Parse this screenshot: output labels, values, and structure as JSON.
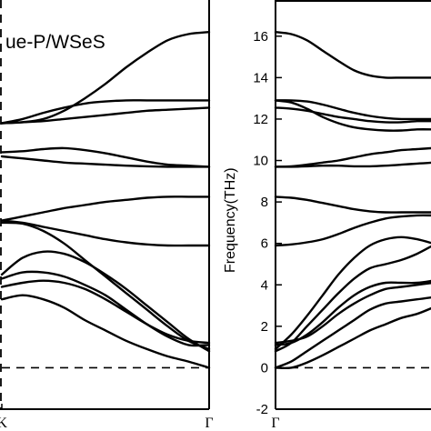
{
  "chart_data": [
    {
      "type": "line",
      "panel": "left",
      "title": "ue-P/WSeS",
      "xlabel": "",
      "ylabel": "",
      "x_ticks": [
        "K",
        "Γ"
      ],
      "x": [
        0,
        0.1,
        0.2,
        0.3,
        0.4,
        0.5,
        0.6,
        0.7,
        0.8,
        0.9,
        1
      ],
      "ylim": [
        -2,
        17
      ],
      "grid": false,
      "zero_line": "dashed",
      "series": [
        {
          "values": [
            11.8,
            11.85,
            12.0,
            12.4,
            13.0,
            13.7,
            14.5,
            15.2,
            15.8,
            16.1,
            16.2
          ]
        },
        {
          "values": [
            11.8,
            12.0,
            12.3,
            12.55,
            12.75,
            12.85,
            12.9,
            12.9,
            12.9,
            12.9,
            12.9
          ]
        },
        {
          "values": [
            11.8,
            11.85,
            11.9,
            12.0,
            12.1,
            12.2,
            12.3,
            12.4,
            12.45,
            12.5,
            12.55
          ]
        },
        {
          "values": [
            10.4,
            10.45,
            10.55,
            10.6,
            10.5,
            10.35,
            10.15,
            9.95,
            9.8,
            9.75,
            9.7
          ]
        },
        {
          "values": [
            10.2,
            10.1,
            10.0,
            9.9,
            9.85,
            9.8,
            9.75,
            9.72,
            9.7,
            9.7,
            9.7
          ]
        },
        {
          "values": [
            7.1,
            7.3,
            7.5,
            7.7,
            7.85,
            8.0,
            8.1,
            8.2,
            8.25,
            8.25,
            8.25
          ]
        },
        {
          "values": [
            7.1,
            7.0,
            6.8,
            6.6,
            6.4,
            6.2,
            6.05,
            5.95,
            5.9,
            5.9,
            5.9
          ]
        },
        {
          "values": [
            7.0,
            6.95,
            6.6,
            6.0,
            5.2,
            4.4,
            3.6,
            2.8,
            2.0,
            1.3,
            0.9
          ]
        },
        {
          "values": [
            4.5,
            5.3,
            5.6,
            5.5,
            5.1,
            4.5,
            3.8,
            3.0,
            2.2,
            1.4,
            0.8
          ]
        },
        {
          "values": [
            4.3,
            4.6,
            4.6,
            4.4,
            4.0,
            3.5,
            2.8,
            2.1,
            1.5,
            1.1,
            1.1
          ]
        },
        {
          "values": [
            3.9,
            4.1,
            4.2,
            4.1,
            3.8,
            3.3,
            2.7,
            2.1,
            1.6,
            1.3,
            1.2
          ]
        },
        {
          "values": [
            3.3,
            3.5,
            3.3,
            2.9,
            2.3,
            1.8,
            1.3,
            0.9,
            0.55,
            0.3,
            0.0
          ]
        }
      ]
    },
    {
      "type": "line",
      "panel": "right",
      "title": "",
      "xlabel": "",
      "ylabel": "Frequency(THz)",
      "x_ticks": [
        "Γ"
      ],
      "y_ticks": [
        "-2",
        "0",
        "2",
        "4",
        "6",
        "8",
        "10",
        "12",
        "14",
        "16"
      ],
      "x": [
        0,
        0.1,
        0.2,
        0.3,
        0.4,
        0.5,
        0.6,
        0.7,
        0.8,
        0.9,
        1
      ],
      "ylim": [
        -2,
        17
      ],
      "grid": false,
      "zero_line": "dashed",
      "series": [
        {
          "values": [
            16.2,
            16.1,
            15.8,
            15.3,
            14.8,
            14.35,
            14.1,
            14.0,
            14.0,
            14.0,
            14.0
          ]
        },
        {
          "values": [
            12.9,
            12.9,
            12.85,
            12.7,
            12.5,
            12.3,
            12.15,
            12.05,
            12.0,
            12.0,
            12.0
          ]
        },
        {
          "values": [
            12.9,
            12.8,
            12.5,
            12.1,
            11.8,
            11.6,
            11.5,
            11.45,
            11.45,
            11.5,
            11.5
          ]
        },
        {
          "values": [
            12.55,
            12.5,
            12.4,
            12.25,
            12.1,
            12.0,
            11.9,
            11.85,
            11.85,
            11.9,
            11.9
          ]
        },
        {
          "values": [
            9.7,
            9.72,
            9.8,
            9.9,
            10.0,
            10.15,
            10.3,
            10.4,
            10.5,
            10.55,
            10.6
          ]
        },
        {
          "values": [
            9.7,
            9.7,
            9.72,
            9.75,
            9.75,
            9.72,
            9.72,
            9.75,
            9.8,
            9.85,
            9.9
          ]
        },
        {
          "values": [
            8.25,
            8.2,
            8.1,
            7.95,
            7.8,
            7.65,
            7.55,
            7.5,
            7.5,
            7.5,
            7.5
          ]
        },
        {
          "values": [
            5.9,
            5.95,
            6.05,
            6.2,
            6.45,
            6.75,
            7.0,
            7.2,
            7.3,
            7.35,
            7.35
          ]
        },
        {
          "values": [
            0.9,
            1.6,
            2.5,
            3.5,
            4.5,
            5.3,
            5.9,
            6.2,
            6.3,
            6.2,
            6.0
          ]
        },
        {
          "values": [
            0.8,
            1.2,
            2.0,
            2.8,
            3.6,
            4.3,
            4.8,
            5.0,
            5.2,
            5.5,
            5.9
          ]
        },
        {
          "values": [
            1.1,
            1.2,
            1.6,
            2.2,
            2.9,
            3.5,
            3.9,
            4.1,
            4.1,
            4.1,
            4.2
          ]
        },
        {
          "values": [
            1.2,
            1.3,
            1.5,
            2.0,
            2.6,
            3.1,
            3.5,
            3.8,
            3.9,
            4.0,
            4.1
          ]
        },
        {
          "values": [
            0.0,
            0.3,
            0.8,
            1.3,
            1.8,
            2.3,
            2.8,
            3.1,
            3.2,
            3.3,
            3.4
          ]
        },
        {
          "values": [
            0.0,
            0.0,
            0.25,
            0.6,
            1.0,
            1.4,
            1.8,
            2.1,
            2.4,
            2.6,
            2.9
          ]
        }
      ]
    }
  ]
}
